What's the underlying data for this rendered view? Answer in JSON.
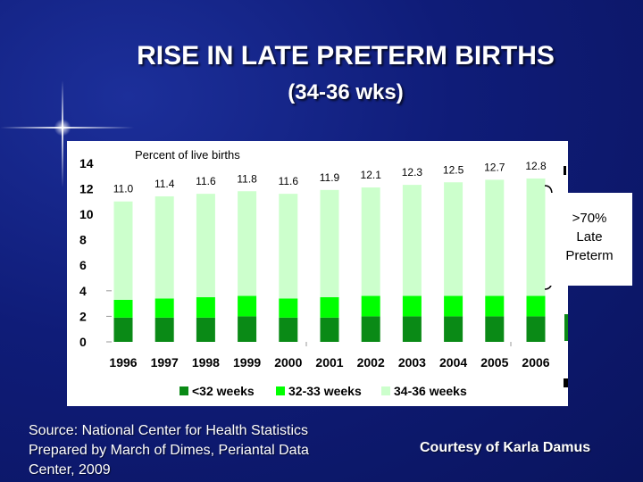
{
  "slide": {
    "title": "RISE IN LATE PRETERM BIRTHS",
    "subtitle": "(34-36 wks)",
    "source": "Source: National Center for Health Statistics\nPrepared by March of Dimes, Periantal Data\nCenter, 2009",
    "courtesy": "Courtesy of Karla Damus"
  },
  "callout": {
    "text": ">70%\nLate\nPreterm"
  },
  "colors": {
    "under_32": "#0a8a16",
    "w32_33": "#00ff00",
    "w34_36": "#ccffcc",
    "background": "#0f1c78"
  },
  "chart_data": {
    "type": "bar",
    "stacked": true,
    "title": "Percent of live births",
    "xlabel": "",
    "ylabel": "",
    "ylim": [
      0,
      14
    ],
    "yticks": [
      "0",
      "2",
      "4",
      "6",
      "8",
      "10",
      "12",
      "14"
    ],
    "categories": [
      "1996",
      "1997",
      "1998",
      "1999",
      "2000",
      "2001",
      "2002",
      "2003",
      "2004",
      "2005",
      "2006"
    ],
    "series": [
      {
        "name": "<32 weeks",
        "values": [
          1.9,
          1.9,
          1.9,
          2.0,
          1.9,
          1.9,
          2.0,
          2.0,
          2.0,
          2.0,
          2.0
        ]
      },
      {
        "name": "32-33 weeks",
        "values": [
          1.4,
          1.5,
          1.6,
          1.6,
          1.5,
          1.6,
          1.6,
          1.6,
          1.6,
          1.6,
          1.6
        ]
      },
      {
        "name": "34-36 weeks",
        "values": [
          7.7,
          8.0,
          8.1,
          8.2,
          8.2,
          8.4,
          8.5,
          8.7,
          8.9,
          9.1,
          9.2
        ]
      }
    ],
    "totals": [
      "11.0",
      "11.4",
      "11.6",
      "11.8",
      "11.6",
      "11.9",
      "12.1",
      "12.3",
      "12.5",
      "12.7",
      "12.8"
    ],
    "grid": false,
    "legend": "bottom"
  }
}
